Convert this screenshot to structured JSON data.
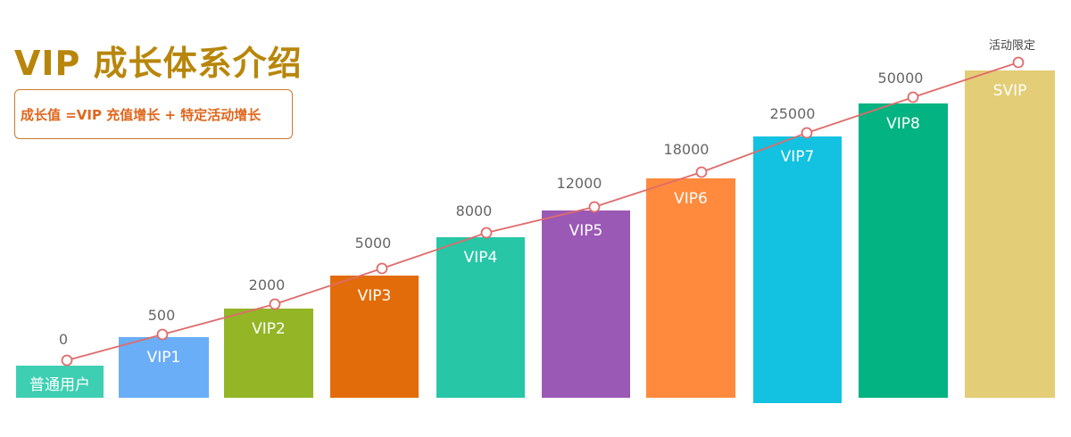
{
  "header": {
    "title": "VIP 成长体系介绍",
    "formula": "成长值 =VIP 充值增长 + 特定活动增长"
  },
  "colors": {
    "title": "#b8860b",
    "formula_text": "#e0651a",
    "formula_border": "#c97a2b",
    "trend_line": "#e06b6b",
    "marker_fill": "#ffffff",
    "value_text": "#666666"
  },
  "chart_data": {
    "type": "bar",
    "title": "",
    "xlabel": "",
    "ylabel": "",
    "categories": [
      "普通用户",
      "VIP1",
      "VIP2",
      "VIP3",
      "VIP4",
      "VIP5",
      "VIP6",
      "VIP7",
      "VIP8",
      "SVIP"
    ],
    "values": [
      "0",
      "500",
      "2000",
      "5000",
      "8000",
      "12000",
      "18000",
      "25000",
      "50000",
      "活动限定"
    ],
    "bar_colors": [
      "#3ecfb2",
      "#6aaef7",
      "#93b526",
      "#e36c0a",
      "#26c6a6",
      "#9b59b6",
      "#ff8a3d",
      "#12c2e0",
      "#03b381",
      "#e3cd76"
    ],
    "trend_line": true,
    "grid": false,
    "legend": "none"
  }
}
